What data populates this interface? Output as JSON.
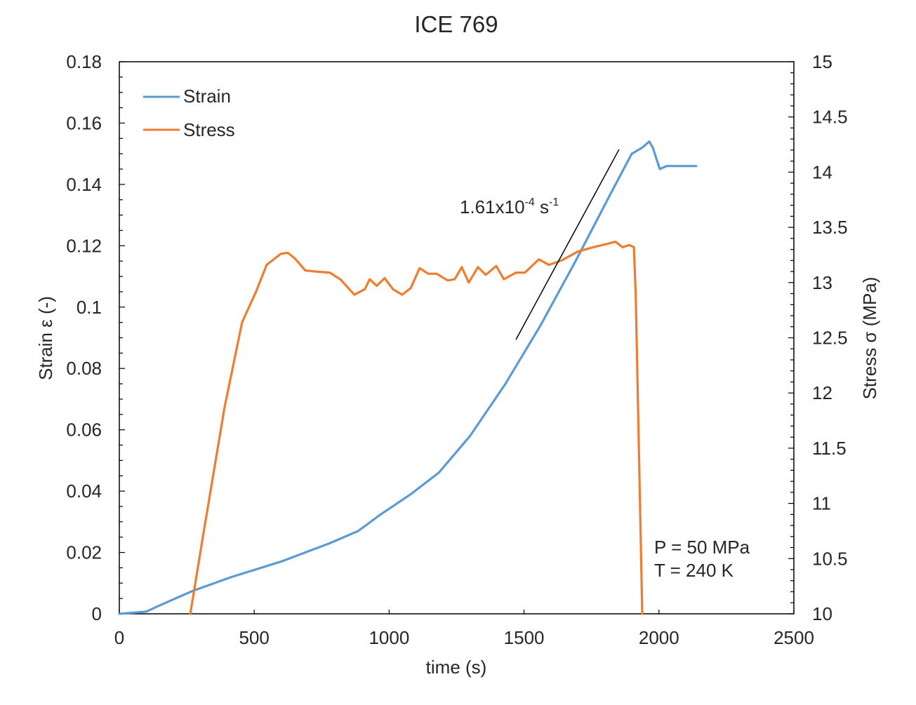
{
  "chart_data": {
    "type": "line",
    "title": "ICE 769",
    "xlabel": "time (s)",
    "ylabel": "Strain ε (-)",
    "y2label": "Stress σ (MPa)",
    "xlim": [
      0,
      2500
    ],
    "ylim": [
      0,
      0.18
    ],
    "y2lim": [
      10,
      15
    ],
    "xticks": [
      "0",
      "500",
      "1000",
      "1500",
      "2000",
      "2500"
    ],
    "yticks": [
      "0",
      "0.02",
      "0.04",
      "0.06",
      "0.08",
      "0.1",
      "0.12",
      "0.14",
      "0.16",
      "0.18"
    ],
    "y2ticks": [
      "10",
      "10.5",
      "11",
      "11.5",
      "12",
      "12.5",
      "13",
      "13.5",
      "14",
      "14.5",
      "15"
    ],
    "legend": {
      "position": "top-left",
      "entries": [
        "Strain",
        "Stress"
      ]
    },
    "colors": {
      "strain": "#5b9bd5",
      "stress": "#ed7d31",
      "fit": "#000000"
    },
    "series": [
      {
        "name": "Strain",
        "axis": "left",
        "x": [
          0,
          99,
          156,
          273,
          416,
          598,
          780,
          885,
          962,
          1080,
          1184,
          1300,
          1431,
          1561,
          1691,
          1821,
          1899,
          1938,
          1964,
          1977,
          2003,
          2029,
          2138
        ],
        "y": [
          0,
          0.0007,
          0.003,
          0.0075,
          0.012,
          0.017,
          0.023,
          0.027,
          0.032,
          0.039,
          0.046,
          0.058,
          0.075,
          0.094,
          0.115,
          0.137,
          0.15,
          0.152,
          0.154,
          0.152,
          0.145,
          0.146,
          0.146
        ]
      },
      {
        "name": "Stress",
        "axis": "right",
        "x": [
          263,
          312,
          390,
          455,
          507,
          546,
          598,
          624,
          650,
          689,
          728,
          780,
          819,
          871,
          910,
          928,
          954,
          983,
          1014,
          1048,
          1080,
          1113,
          1145,
          1176,
          1217,
          1243,
          1269,
          1295,
          1329,
          1358,
          1397,
          1425,
          1470,
          1503,
          1555,
          1592,
          1639,
          1699,
          1756,
          1808,
          1839,
          1865,
          1891,
          1907,
          1914,
          1938
        ],
        "y": [
          10,
          10.73,
          11.87,
          12.64,
          12.92,
          13.16,
          13.26,
          13.27,
          13.22,
          13.11,
          13.1,
          13.09,
          13.03,
          12.89,
          12.94,
          13.03,
          12.97,
          13.04,
          12.94,
          12.89,
          12.95,
          13.13,
          13.08,
          13.08,
          13.02,
          13.03,
          13.14,
          13.0,
          13.14,
          13.07,
          13.15,
          13.03,
          13.09,
          13.09,
          13.21,
          13.16,
          13.2,
          13.28,
          13.32,
          13.35,
          13.37,
          13.32,
          13.34,
          13.32,
          12.89,
          10
        ]
      }
    ],
    "fit_line": {
      "x": [
        1470,
        1852
      ],
      "y": [
        0.0894,
        0.1514
      ]
    },
    "annotations": {
      "rate_mantissa": "1.61x10",
      "rate_exp": "-4",
      "rate_unit": " s",
      "rate_unit_exp": "-1",
      "pressure": "P = 50 MPa",
      "temperature": "T = 240 K"
    }
  }
}
